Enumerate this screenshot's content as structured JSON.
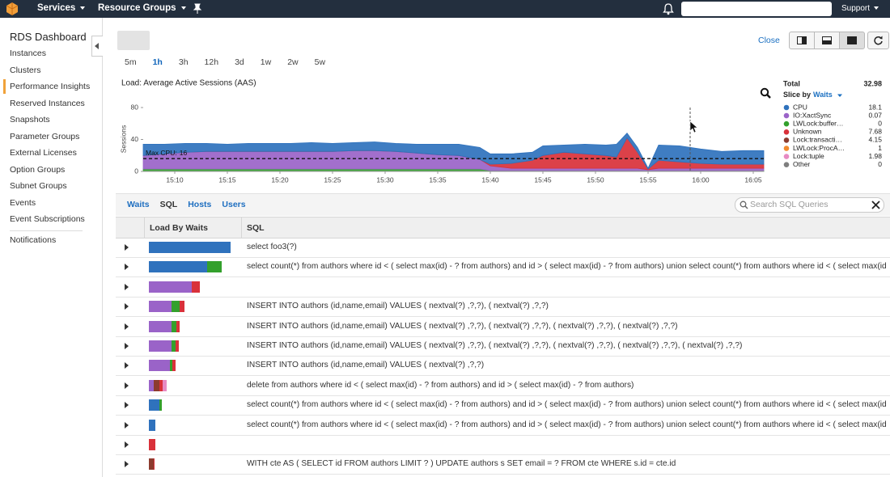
{
  "topnav": {
    "services": "Services",
    "resource_groups": "Resource Groups",
    "support": "Support"
  },
  "sidebar": {
    "title": "RDS Dashboard",
    "items": [
      "Instances",
      "Clusters",
      "Performance Insights",
      "Reserved Instances",
      "Snapshots",
      "Parameter Groups",
      "External Licenses",
      "Option Groups",
      "Subnet Groups",
      "Events",
      "Event Subscriptions"
    ],
    "active": 2,
    "footer_items": [
      "Notifications"
    ]
  },
  "toolbar": {
    "close": "Close"
  },
  "time_ranges": {
    "options": [
      "5m",
      "1h",
      "3h",
      "12h",
      "3d",
      "1w",
      "2w",
      "5w"
    ],
    "selected": 1
  },
  "chart_data": {
    "type": "area",
    "stacked": true,
    "title": "Load: Average Active Sessions (AAS)",
    "y_label": "Sessions",
    "x": [
      "15:07",
      "15:09",
      "15:11",
      "15:13",
      "15:15",
      "15:17",
      "15:19",
      "15:21",
      "15:23",
      "15:25",
      "15:27",
      "15:29",
      "15:31",
      "15:33",
      "15:35",
      "15:37",
      "15:39",
      "15:40",
      "15:42",
      "15:44",
      "15:45",
      "15:47",
      "15:49",
      "15:51",
      "15:52",
      "15:53",
      "15:54",
      "15:55",
      "15:56",
      "15:58",
      "16:00",
      "16:02",
      "16:04",
      "16:06"
    ],
    "xlim": [
      "15:07",
      "16:06"
    ],
    "xticks": [
      "15:10",
      "15:15",
      "15:20",
      "15:25",
      "15:30",
      "15:35",
      "15:40",
      "15:45",
      "15:50",
      "15:55",
      "16:00",
      "16:05"
    ],
    "ylim": [
      0,
      80
    ],
    "yticks": [
      0,
      40,
      80
    ],
    "max_line": {
      "label": "Max CPU:",
      "value": 16
    },
    "legend_header": {
      "total_label": "Total",
      "total": 32.98,
      "slice_label": "Slice by",
      "slice_value": "Waits"
    },
    "stack_order": [
      2,
      1,
      3,
      0
    ],
    "series": [
      {
        "name": "CPU",
        "color": "#2f72bd",
        "current": 18.1,
        "values": [
          14,
          12,
          11,
          10,
          9,
          10,
          10,
          10,
          11,
          10,
          10,
          11,
          10,
          11,
          13,
          14,
          15,
          13,
          12,
          10,
          12,
          9,
          12,
          13,
          16,
          6,
          6,
          1,
          19,
          20,
          18,
          16,
          17,
          17
        ]
      },
      {
        "name": "IO:XactSync",
        "color": "#9a63c8",
        "current": 0.07,
        "values": [
          17,
          19,
          21,
          22,
          22,
          22,
          22,
          22,
          22,
          22,
          23,
          23,
          22,
          20,
          18,
          17,
          12,
          6,
          3,
          3,
          3,
          3,
          3,
          3,
          3,
          3,
          3,
          1,
          3,
          3,
          3,
          3,
          3,
          3
        ]
      },
      {
        "name": "LWLock:buffer…",
        "color": "#33a02c",
        "current": 0,
        "values": [
          3,
          3,
          3,
          3,
          3,
          3,
          3,
          3,
          3,
          3,
          3,
          3,
          3,
          3,
          3,
          3,
          3,
          1,
          1,
          1,
          1,
          1,
          1,
          1,
          1,
          1,
          1,
          1,
          1,
          1,
          1,
          1,
          1,
          1
        ]
      },
      {
        "name": "Unknown",
        "color": "#d9313a",
        "current": 7.68,
        "values": [
          0,
          0,
          0,
          0,
          0,
          0,
          0,
          0,
          0,
          0,
          0,
          0,
          0,
          0,
          0,
          0,
          0,
          2,
          6,
          10,
          16,
          20,
          18,
          16,
          14,
          38,
          20,
          1,
          10,
          8,
          6,
          5,
          5,
          5
        ]
      },
      {
        "name": "Lock:transacti…",
        "color": "#8c3b2e",
        "current": 4.15
      },
      {
        "name": "LWLock:ProcA…",
        "color": "#f28a2e",
        "current": 1
      },
      {
        "name": "Lock:tuple",
        "color": "#e78ac3",
        "current": 1.98
      },
      {
        "name": "Other",
        "color": "#7f7f7f",
        "current": 0
      }
    ]
  },
  "tabs": {
    "options": [
      "Waits",
      "SQL",
      "Hosts",
      "Users"
    ],
    "selected": 1
  },
  "search": {
    "placeholder": "Search SQL Queries"
  },
  "table": {
    "columns": [
      "Load By Waits",
      "SQL"
    ],
    "rows": [
      {
        "load": [
          {
            "color": "#2f72bd",
            "value": 10.1
          }
        ],
        "sql": "select foo3(?)"
      },
      {
        "load": [
          {
            "color": "#2f72bd",
            "value": 7.2
          },
          {
            "color": "#33a02c",
            "value": 1.8
          }
        ],
        "sql": "select count(*) from authors where id < ( select max(id) - ? from authors) and id > ( select max(id) - ? from authors) union select count(*) from authors where id < ( select max(id) - ? from…"
      },
      {
        "load": [
          {
            "color": "#9a63c8",
            "value": 5.3
          },
          {
            "color": "#d9313a",
            "value": 1.0
          }
        ],
        "sql": null
      },
      {
        "load": [
          {
            "color": "#9a63c8",
            "value": 2.8
          },
          {
            "color": "#33a02c",
            "value": 1.0
          },
          {
            "color": "#d9313a",
            "value": 0.6
          }
        ],
        "sql": "INSERT INTO authors (id,name,email) VALUES ( nextval(?) ,?,?), ( nextval(?) ,?,?)"
      },
      {
        "load": [
          {
            "color": "#9a63c8",
            "value": 2.8
          },
          {
            "color": "#33a02c",
            "value": 0.6
          },
          {
            "color": "#d9313a",
            "value": 0.4
          }
        ],
        "sql": "INSERT INTO authors (id,name,email) VALUES ( nextval(?) ,?,?), ( nextval(?) ,?,?), ( nextval(?) ,?,?), ( nextval(?) ,?,?)"
      },
      {
        "load": [
          {
            "color": "#9a63c8",
            "value": 2.8
          },
          {
            "color": "#33a02c",
            "value": 0.5
          },
          {
            "color": "#d9313a",
            "value": 0.4
          }
        ],
        "sql": "INSERT INTO authors (id,name,email) VALUES ( nextval(?) ,?,?), ( nextval(?) ,?,?), ( nextval(?) ,?,?), ( nextval(?) ,?,?), ( nextval(?) ,?,?)"
      },
      {
        "load": [
          {
            "color": "#9a63c8",
            "value": 2.6
          },
          {
            "color": "#33a02c",
            "value": 0.3
          },
          {
            "color": "#d9313a",
            "value": 0.4
          }
        ],
        "sql": "INSERT INTO authors (id,name,email) VALUES ( nextval(?) ,?,?)"
      },
      {
        "load": [
          {
            "color": "#9a63c8",
            "value": 0.6
          },
          {
            "color": "#8c3b2e",
            "value": 0.7
          },
          {
            "color": "#d9313a",
            "value": 0.4
          },
          {
            "color": "#e78ac3",
            "value": 0.5
          }
        ],
        "sql": "delete from authors where id < ( select max(id) - ? from authors) and id > ( select max(id) - ? from authors)"
      },
      {
        "load": [
          {
            "color": "#2f72bd",
            "value": 1.3
          },
          {
            "color": "#33a02c",
            "value": 0.3
          }
        ],
        "sql": "select count(*) from authors where id < ( select max(id) - ? from authors) and id > ( select max(id) - ? from authors) union select count(*) from authors where id < ( select max(id) - ? from…"
      },
      {
        "load": [
          {
            "color": "#2f72bd",
            "value": 0.8
          }
        ],
        "sql": "select count(*) from authors where id < ( select max(id) - ? from authors) and id > ( select max(id) - ? from authors) union select count(*) from authors where id < ( select max(id) - ? from…"
      },
      {
        "load": [
          {
            "color": "#d9313a",
            "value": 0.8
          }
        ],
        "sql": null
      },
      {
        "load": [
          {
            "color": "#8c3b2e",
            "value": 0.6
          },
          {
            "color": "#d9313a",
            "value": 0.1
          }
        ],
        "sql": "WITH cte AS ( SELECT id FROM authors LIMIT ? ) UPDATE authors s SET email = ? FROM cte WHERE s.id = cte.id"
      }
    ]
  }
}
